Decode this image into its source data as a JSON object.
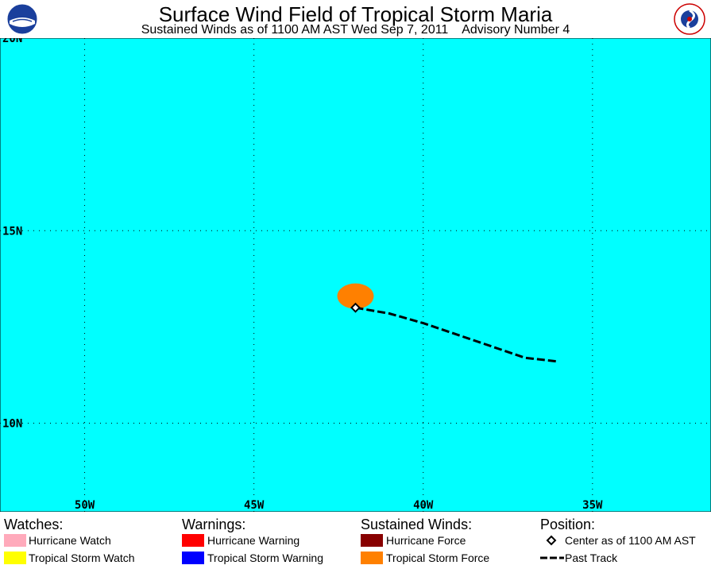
{
  "title": "Surface Wind Field of Tropical Storm Maria",
  "subtitle": "Sustained Winds as of 1100 AM AST Wed Sep 7, 2011    Advisory Number 4",
  "logos": {
    "left": "NOAA",
    "right": "NATIONAL WEATHER SERVICE"
  },
  "map": {
    "ocean_color": "#00ffff",
    "lon_ticks": [
      "50W",
      "45W",
      "40W",
      "35W"
    ],
    "lat_ticks": [
      "20N",
      "15N",
      "10N"
    ],
    "lon_range": [
      -52.5,
      -31.5
    ],
    "lat_range": [
      7.7,
      20
    ],
    "storm_center": {
      "lat": 13.0,
      "lon": -42.0
    },
    "tropical_storm_force_area": {
      "lat": 13.3,
      "lon": -42.0,
      "color": "#ff8000"
    },
    "past_track": [
      {
        "lat": 13.0,
        "lon": -42.0
      },
      {
        "lat": 12.85,
        "lon": -41.0
      },
      {
        "lat": 12.6,
        "lon": -40.0
      },
      {
        "lat": 12.3,
        "lon": -39.0
      },
      {
        "lat": 12.0,
        "lon": -38.0
      },
      {
        "lat": 11.7,
        "lon": -37.0
      },
      {
        "lat": 11.6,
        "lon": -36.0
      }
    ]
  },
  "legend": {
    "watches": {
      "label": "Watches:",
      "items": [
        {
          "label": "Hurricane Watch",
          "color": "#ffaabb"
        },
        {
          "label": "Tropical Storm Watch",
          "color": "#ffff00"
        }
      ]
    },
    "warnings": {
      "label": "Warnings:",
      "items": [
        {
          "label": "Hurricane Warning",
          "color": "#ff0000"
        },
        {
          "label": "Tropical Storm Warning",
          "color": "#0000ff"
        }
      ]
    },
    "winds": {
      "label": "Sustained Winds:",
      "items": [
        {
          "label": "Hurricane Force",
          "color": "#880000"
        },
        {
          "label": "Tropical Storm Force",
          "color": "#ff8000"
        }
      ]
    },
    "position": {
      "label": "Position:",
      "center_label": "Center as of 1100 AM AST",
      "track_label": "Past Track"
    }
  }
}
